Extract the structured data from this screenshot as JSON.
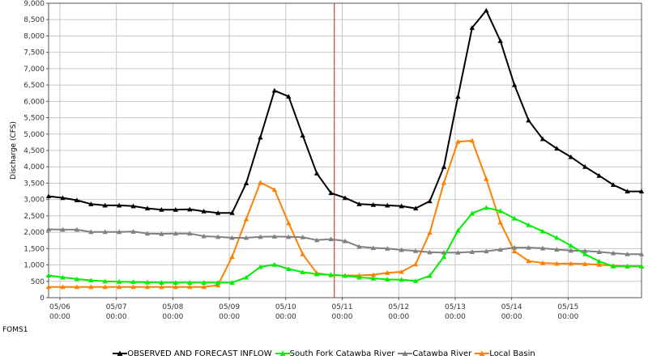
{
  "chart_data": {
    "type": "line",
    "xlabel": "",
    "ylabel": "Discharge (CFS)",
    "footer": "FOMS1",
    "ylim": [
      0,
      9000
    ],
    "y_ticks": [
      "0",
      "500",
      "1,000",
      "1,500",
      "2,000",
      "2,500",
      "3,000",
      "3,500",
      "4,000",
      "4,500",
      "5,000",
      "5,500",
      "6,000",
      "6,500",
      "7,000",
      "7,500",
      "8,000",
      "8,500",
      "9,000"
    ],
    "x_ticks": [
      {
        "t": 0.2,
        "date": "05/06",
        "time": "00:00"
      },
      {
        "t": 1.2,
        "date": "05/07",
        "time": "00:00"
      },
      {
        "t": 2.2,
        "date": "05/08",
        "time": "00:00"
      },
      {
        "t": 3.2,
        "date": "05/09",
        "time": "00:00"
      },
      {
        "t": 4.2,
        "date": "05/10",
        "time": "00:00"
      },
      {
        "t": 5.2,
        "date": "05/11",
        "time": "00:00"
      },
      {
        "t": 6.2,
        "date": "05/12",
        "time": "00:00"
      },
      {
        "t": 7.2,
        "date": "05/13",
        "time": "00:00"
      },
      {
        "t": 8.2,
        "date": "05/14",
        "time": "00:00"
      },
      {
        "t": 9.2,
        "date": "05/15",
        "time": "00:00"
      }
    ],
    "x_range": [
      0,
      10.5
    ],
    "now_marker_t": 5.06,
    "grid": true,
    "legend_position": "bottom",
    "series": [
      {
        "name": "OBSERVED AND FORECAST INFLOW",
        "color": "#000000",
        "x": [
          0,
          0.25,
          0.5,
          0.75,
          1,
          1.25,
          1.5,
          1.75,
          2,
          2.25,
          2.5,
          2.75,
          3,
          3.25,
          3.5,
          3.75,
          4,
          4.25,
          4.5,
          4.75,
          5,
          5.25,
          5.5,
          5.75,
          6,
          6.25,
          6.5,
          6.75,
          7,
          7.25,
          7.5,
          7.75,
          8,
          8.25,
          8.5,
          8.75,
          9,
          9.25,
          9.5,
          9.75,
          10,
          10.25,
          10.5
        ],
        "values": [
          3100,
          3050,
          2980,
          2860,
          2820,
          2820,
          2800,
          2730,
          2690,
          2690,
          2700,
          2640,
          2590,
          2590,
          3500,
          4900,
          6330,
          6150,
          4960,
          3800,
          3200,
          3050,
          2860,
          2840,
          2820,
          2800,
          2730,
          2950,
          4000,
          6150,
          8250,
          8780,
          7850,
          6500,
          5420,
          4850,
          4560,
          4300,
          4000,
          3730,
          3450,
          3250,
          3250
        ]
      },
      {
        "name": "South Fork Catawba River",
        "color": "#00ee00",
        "x": [
          0,
          0.25,
          0.5,
          0.75,
          1,
          1.25,
          1.5,
          1.75,
          2,
          2.25,
          2.5,
          2.75,
          3,
          3.25,
          3.5,
          3.75,
          4,
          4.25,
          4.5,
          4.75,
          5,
          5.25,
          5.5,
          5.75,
          6,
          6.25,
          6.5,
          6.75,
          7,
          7.25,
          7.5,
          7.75,
          8,
          8.25,
          8.5,
          8.75,
          9,
          9.25,
          9.5,
          9.75,
          10,
          10.25,
          10.5
        ],
        "values": [
          680,
          620,
          570,
          530,
          500,
          490,
          480,
          470,
          460,
          460,
          460,
          460,
          460,
          460,
          620,
          940,
          1010,
          880,
          780,
          720,
          700,
          670,
          620,
          590,
          560,
          550,
          510,
          670,
          1250,
          2050,
          2580,
          2750,
          2650,
          2420,
          2220,
          2030,
          1830,
          1590,
          1330,
          1110,
          960,
          960,
          960
        ]
      },
      {
        "name": "Catawba River",
        "color": "#808080",
        "x": [
          0,
          0.25,
          0.5,
          0.75,
          1,
          1.25,
          1.5,
          1.75,
          2,
          2.25,
          2.5,
          2.75,
          3,
          3.25,
          3.5,
          3.75,
          4,
          4.25,
          4.5,
          4.75,
          5,
          5.25,
          5.5,
          5.75,
          6,
          6.25,
          6.5,
          6.75,
          7,
          7.25,
          7.5,
          7.75,
          8,
          8.25,
          8.5,
          8.75,
          9,
          9.25,
          9.5,
          9.75,
          10,
          10.25,
          10.5
        ],
        "values": [
          2090,
          2080,
          2080,
          2010,
          2010,
          2010,
          2020,
          1960,
          1950,
          1960,
          1960,
          1880,
          1860,
          1830,
          1830,
          1860,
          1870,
          1860,
          1850,
          1760,
          1790,
          1730,
          1560,
          1520,
          1500,
          1460,
          1430,
          1390,
          1380,
          1380,
          1400,
          1420,
          1470,
          1530,
          1530,
          1510,
          1470,
          1440,
          1430,
          1400,
          1360,
          1330,
          1330
        ]
      },
      {
        "name": "Local Basin",
        "color": "#ff8000",
        "x": [
          0,
          0.25,
          0.5,
          0.75,
          1,
          1.25,
          1.5,
          1.75,
          2,
          2.25,
          2.5,
          2.75,
          3,
          3.25,
          3.5,
          3.75,
          4,
          4.25,
          4.5,
          4.75,
          5,
          5.25,
          5.5,
          5.75,
          6,
          6.25,
          6.5,
          6.75,
          7,
          7.25,
          7.5,
          7.75,
          8,
          8.25,
          8.5,
          8.75,
          9,
          9.25,
          9.5,
          9.75,
          10,
          10.25,
          10.5
        ],
        "values": [
          330,
          330,
          330,
          330,
          330,
          330,
          330,
          330,
          330,
          330,
          330,
          330,
          380,
          1250,
          2400,
          3520,
          3300,
          2280,
          1330,
          750,
          690,
          680,
          680,
          700,
          760,
          790,
          1020,
          1990,
          3510,
          4770,
          4800,
          3630,
          2300,
          1420,
          1120,
          1060,
          1040,
          1040,
          1030,
          1010,
          980,
          960,
          960
        ]
      }
    ]
  }
}
